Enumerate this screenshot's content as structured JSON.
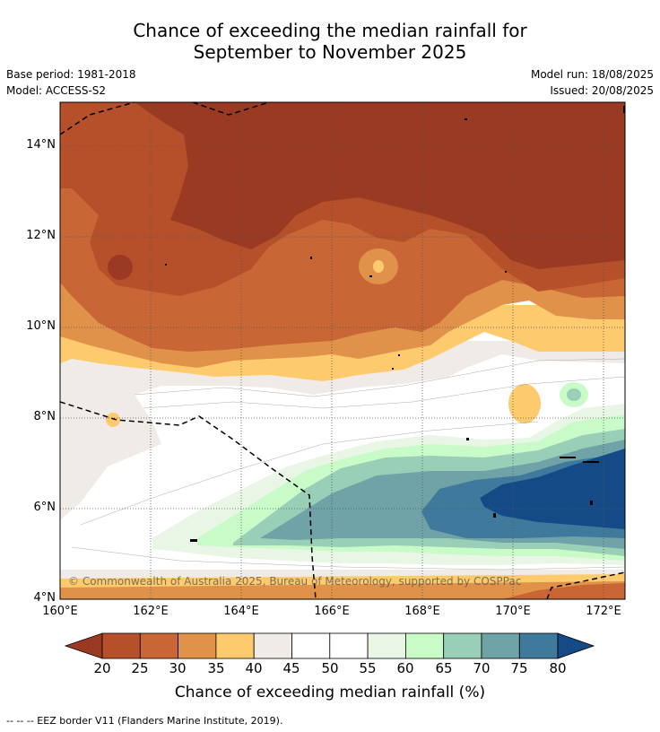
{
  "title": {
    "line1": "Chance of exceeding the median rainfall for",
    "line2": "September to November 2025"
  },
  "meta": {
    "base_period": "Base period: 1981-2018",
    "model": "Model: ACCESS-S2",
    "model_run": "Model run: 18/08/2025",
    "issued": "Issued: 20/08/2025"
  },
  "map": {
    "lat_labels": [
      "14°N",
      "12°N",
      "10°N",
      "8°N",
      "6°N",
      "4°N"
    ],
    "lon_labels": [
      "160°E",
      "162°E",
      "164°E",
      "166°E",
      "168°E",
      "170°E",
      "172°E"
    ],
    "copyright": "© Commonwealth of Australia 2025, Bureau of Meteorology, supported by COSPPac"
  },
  "colorbar": {
    "ticks": [
      "20",
      "25",
      "30",
      "35",
      "40",
      "45",
      "50",
      "55",
      "60",
      "65",
      "70",
      "75",
      "80"
    ],
    "colors": [
      "#9b3a23",
      "#b5502a",
      "#c96635",
      "#e0924a",
      "#fdcb6e",
      "#f0ebe6",
      "#ffffff",
      "#ffffff",
      "#e9f6e6",
      "#c8fbc8",
      "#9acfb7",
      "#6fa3a8",
      "#3f7a9c",
      "#144a86"
    ],
    "title": "Chance of exceeding median rainfall (%)"
  },
  "footnote": "--  --  -- EEZ border V11 (Flanders Marine Institute, 2019)."
}
